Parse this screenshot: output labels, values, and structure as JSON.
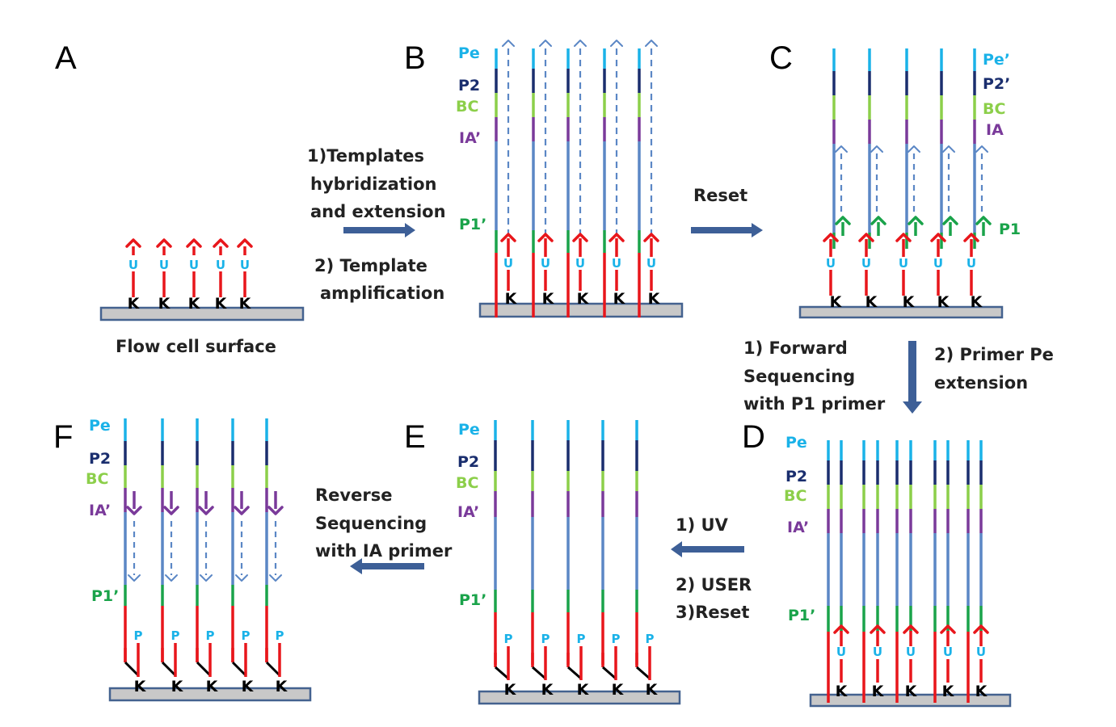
{
  "panels": {
    "A": "A",
    "B": "B",
    "C": "C",
    "D": "D",
    "E": "E",
    "F": "F"
  },
  "surface_caption": "Flow cell surface",
  "anchor_label": "K",
  "uracil_label": "U",
  "phosphate_label": "P",
  "segment_labels": {
    "pe": "Pe",
    "pe_prime": "Pe’",
    "p2": "P2",
    "p2_prime": "P2’",
    "bc": "BC",
    "ia": "IA",
    "ia_prime": "IA’",
    "p1": "P1",
    "p1_prime": "P1’"
  },
  "steps": {
    "a_to_b": [
      "1)Templates",
      "hybridization",
      "and extension",
      "2) Template",
      "amplification"
    ],
    "b_to_c": [
      "Reset"
    ],
    "c_to_d_left": [
      "1) Forward",
      "Sequencing",
      "with P1 primer"
    ],
    "c_to_d_right": [
      "2) Primer Pe",
      "extension"
    ],
    "d_to_e": [
      "1) UV",
      "2) USER",
      "3)Reset"
    ],
    "e_to_f": [
      "Reverse",
      "Sequencing",
      "with IA primer"
    ]
  },
  "colors": {
    "pe": "#1ab2e8",
    "p2": "#1a2e6e",
    "bc": "#8ccf4a",
    "ia": "#7a3a9a",
    "insert": "#5b87c5",
    "p1": "#1aa34a",
    "red": "#e8161b",
    "uracil": "#1ab2e8",
    "surface_fill": "#c8c8c8",
    "surface_border": "#44628f",
    "process_arrow": "#3d5f97"
  }
}
